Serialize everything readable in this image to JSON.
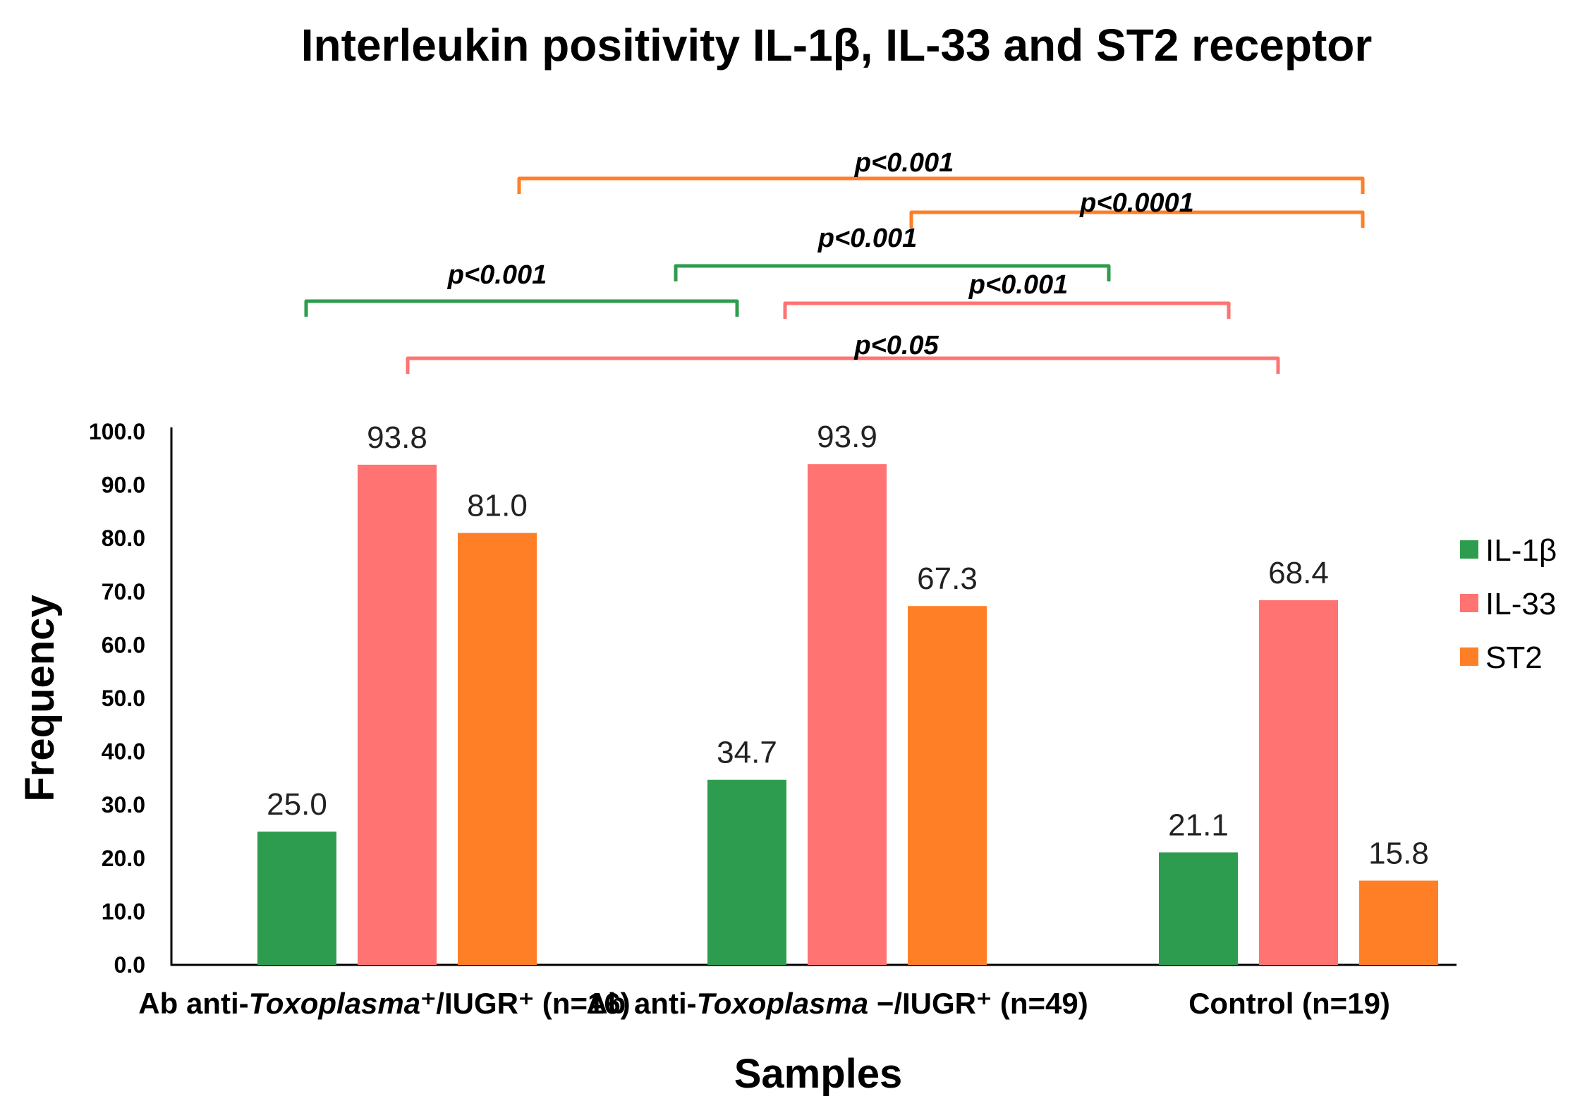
{
  "chart_data": {
    "type": "bar",
    "title": "Interleukin positivity IL-1β, IL-33 and ST2  receptor",
    "xlabel": "Samples",
    "ylabel": "Frequency",
    "ylim": [
      0,
      100
    ],
    "yticks": [
      "0.0",
      "10.0",
      "20.0",
      "30.0",
      "40.0",
      "50.0",
      "60.0",
      "70.0",
      "80.0",
      "90.0",
      "100.0"
    ],
    "categories": [
      {
        "pre": "Ab anti-",
        "ital": "Toxoplasma",
        "post": "⁺/IUGR⁺ (n=16)"
      },
      {
        "pre": "Ab anti-",
        "ital": "Toxoplasma",
        "post": " −/IUGR⁺ (n=49)"
      },
      {
        "pre": "Control (n=19)",
        "ital": "",
        "post": ""
      }
    ],
    "series": [
      {
        "name": "IL-1β",
        "color": "#2e9c4e",
        "values": [
          25.0,
          34.7,
          21.1
        ],
        "labels": [
          "25.0",
          "34.7",
          "21.1"
        ]
      },
      {
        "name": "IL-33",
        "color": "#ff7373",
        "values": [
          93.8,
          93.9,
          68.4
        ],
        "labels": [
          "93.8",
          "93.9",
          "68.4"
        ]
      },
      {
        "name": "ST2",
        "color": "#ff7f27",
        "values": [
          81.0,
          67.3,
          15.8
        ],
        "labels": [
          "81.0",
          "67.3",
          "15.8"
        ]
      }
    ],
    "legend_position": "right",
    "significance": [
      {
        "series": "ST2",
        "from_group": 0,
        "to_group": 2,
        "p": "<0.001"
      },
      {
        "series": "ST2",
        "from_group": 1,
        "to_group": 2,
        "p": "<0.0001"
      },
      {
        "series": "IL-1β",
        "from_group": 1,
        "to_group": 2,
        "p": "<0.001"
      },
      {
        "series": "IL-1β",
        "from_group": 0,
        "to_group": 1,
        "p": "<0.001"
      },
      {
        "series": "IL-33",
        "from_group": 1,
        "to_group": 2,
        "p": "<0.001"
      },
      {
        "series": "IL-33",
        "from_group": 0,
        "to_group": 2,
        "p": "<0.05"
      }
    ]
  }
}
